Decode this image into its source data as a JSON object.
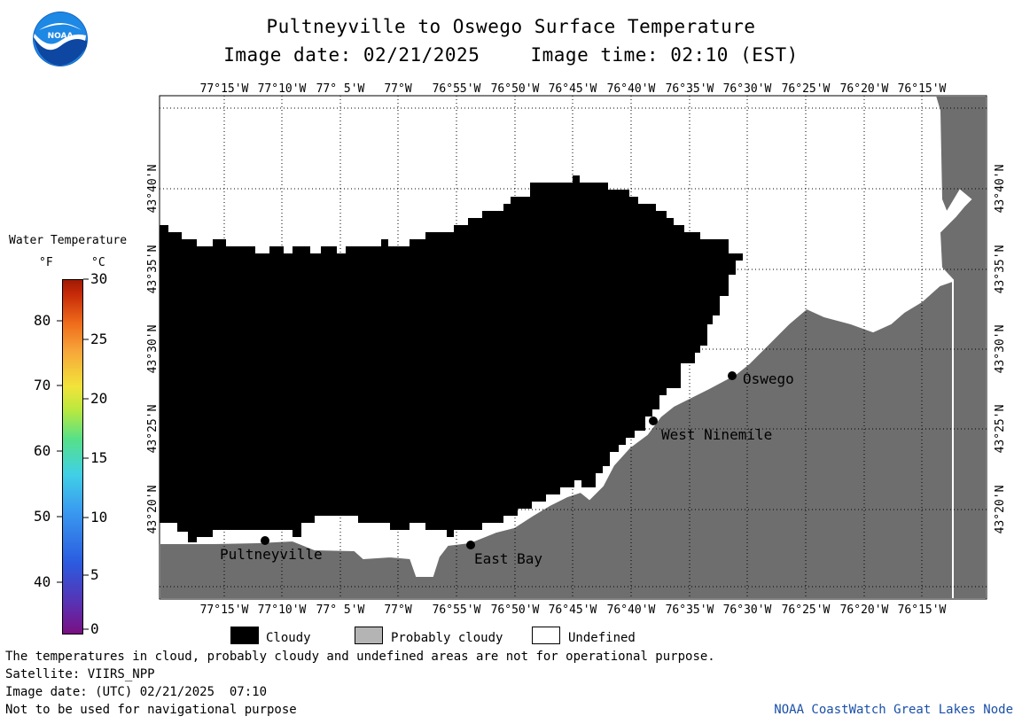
{
  "header": {
    "title": "Pultneyville to Oswego Surface Temperature",
    "image_date": "Image date: 02/21/2025",
    "image_time": "Image time: 02:10 (EST)"
  },
  "logo": {
    "text": "NOAA",
    "icon": "noaa-logo"
  },
  "colorbar": {
    "title": "Water Temperature",
    "unit_f": "°F",
    "unit_c": "°C",
    "f_ticks": [
      "80",
      "70",
      "60",
      "50",
      "40"
    ],
    "c_ticks": [
      "30",
      "25",
      "20",
      "15",
      "10",
      "5",
      "0"
    ]
  },
  "map": {
    "lon_labels": [
      "77°15'W",
      "77°10'W",
      "77° 5'W",
      "77°W",
      "76°55'W",
      "76°50'W",
      "76°45'W",
      "76°40'W",
      "76°35'W",
      "76°30'W",
      "76°25'W",
      "76°20'W",
      "76°15'W"
    ],
    "lat_labels": [
      "43°40'N",
      "43°35'N",
      "43°30'N",
      "43°25'N",
      "43°20'N"
    ],
    "places": [
      {
        "name": "Pultneyville"
      },
      {
        "name": "East Bay"
      },
      {
        "name": "West Ninemile"
      },
      {
        "name": "Oswego"
      }
    ],
    "colors": {
      "land": "#6e6e6e",
      "cloud": "#000000",
      "undefined": "#ffffff"
    }
  },
  "legend": {
    "cloudy": "Cloudy",
    "probably_cloudy": "Probably cloudy",
    "undefined": "Undefined",
    "colors": {
      "cloudy": "#000000",
      "probably_cloudy": "#b4b4b4",
      "undefined": "#ffffff"
    }
  },
  "footer": {
    "note": "The temperatures in cloud, probably cloudy and undefined areas are not for operational purpose.",
    "satellite": "Satellite: VIIRS_NPP",
    "utc_date": "Image date: (UTC) 02/21/2025  07:10",
    "nav": "Not to be used for navigational purpose",
    "credit": "NOAA CoastWatch Great Lakes Node"
  }
}
